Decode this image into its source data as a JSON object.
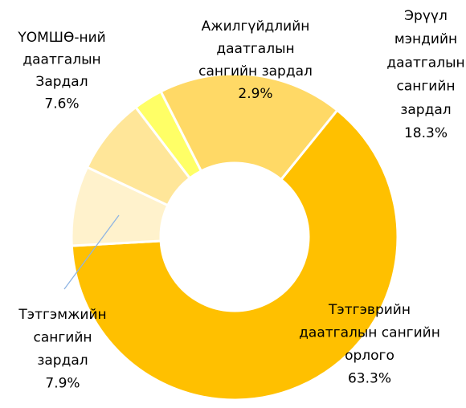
{
  "chart_data": {
    "type": "donut",
    "categories": [
      "Тэтгэврийн\nдаатгалын сангийн\nорлого",
      "Тэтгэмжийн\nсангийн\nзардал",
      "ҮОМШӨ-ний\nдаатгалын\nЗардал",
      "Ажилгүйдлийн\nдаатгалын\nсангийн зардал",
      "Эрүүл\nмэндийн\nдаатгалын\nсангийн\nзардал"
    ],
    "values": [
      63.3,
      7.9,
      7.6,
      2.9,
      18.3
    ],
    "value_labels": [
      "63.3%",
      "7.9%",
      "7.6%",
      "2.9%",
      "18.3%"
    ],
    "colors": [
      "#FFC000",
      "#FFF2CC",
      "#FFE699",
      "#FFFF66",
      "#FFD966"
    ]
  }
}
